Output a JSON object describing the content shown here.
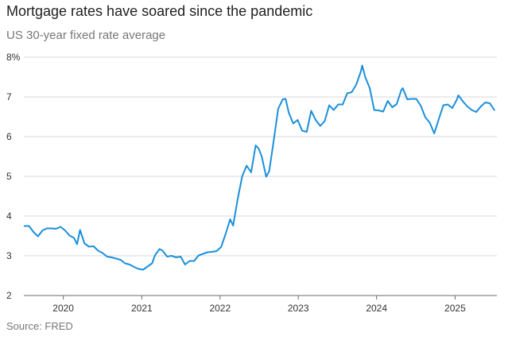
{
  "title": "Mortgage rates have soared since the pandemic",
  "subtitle": "US 30-year fixed rate average",
  "source": "Source: FRED",
  "colors": {
    "line": "#1b8fdb",
    "grid": "#d9d9d9",
    "axis": "#6b6b6b"
  },
  "chart_data": {
    "type": "line",
    "title": "Mortgage rates have soared since the pandemic",
    "subtitle": "US 30-year fixed rate average",
    "xlabel": "",
    "ylabel": "",
    "ylim": [
      2,
      8
    ],
    "xlim": [
      "2019-07-01",
      "2025-07-15"
    ],
    "yticks": [
      2,
      3,
      4,
      5,
      6,
      7,
      8
    ],
    "ytick_labels": [
      "2",
      "3",
      "4",
      "5",
      "6",
      "7",
      "8%"
    ],
    "xticks": [
      "2020-01-01",
      "2021-01-01",
      "2022-01-01",
      "2023-01-01",
      "2024-01-01",
      "2025-01-01"
    ],
    "xtick_labels": [
      "2020",
      "2021",
      "2022",
      "2023",
      "2024",
      "2025"
    ],
    "grid": true,
    "legend": "none",
    "series": [
      {
        "x": [
          "2019-07-04",
          "2019-07-25",
          "2019-08-15",
          "2019-09-05",
          "2019-09-26",
          "2019-10-17",
          "2019-11-07",
          "2019-11-28",
          "2019-12-19",
          "2020-01-09",
          "2020-01-30",
          "2020-02-20",
          "2020-03-05",
          "2020-03-19",
          "2020-04-09",
          "2020-04-30",
          "2020-05-21",
          "2020-06-11",
          "2020-07-02",
          "2020-07-23",
          "2020-08-13",
          "2020-09-03",
          "2020-09-24",
          "2020-10-15",
          "2020-11-05",
          "2020-11-26",
          "2020-12-17",
          "2021-01-07",
          "2021-01-28",
          "2021-02-18",
          "2021-03-04",
          "2021-03-25",
          "2021-04-08",
          "2021-04-29",
          "2021-05-20",
          "2021-06-10",
          "2021-07-01",
          "2021-07-22",
          "2021-08-12",
          "2021-09-02",
          "2021-09-23",
          "2021-10-14",
          "2021-11-04",
          "2021-11-25",
          "2021-12-16",
          "2022-01-06",
          "2022-01-27",
          "2022-02-17",
          "2022-03-03",
          "2022-03-24",
          "2022-04-14",
          "2022-05-05",
          "2022-05-26",
          "2022-06-16",
          "2022-06-30",
          "2022-07-14",
          "2022-08-04",
          "2022-08-18",
          "2022-09-08",
          "2022-09-29",
          "2022-10-20",
          "2022-11-03",
          "2022-11-17",
          "2022-12-08",
          "2022-12-29",
          "2023-01-19",
          "2023-02-09",
          "2023-03-02",
          "2023-03-23",
          "2023-04-13",
          "2023-05-04",
          "2023-05-25",
          "2023-06-15",
          "2023-07-06",
          "2023-07-27",
          "2023-08-17",
          "2023-09-07",
          "2023-09-28",
          "2023-10-19",
          "2023-10-26",
          "2023-11-09",
          "2023-11-30",
          "2023-12-21",
          "2024-01-11",
          "2024-02-01",
          "2024-02-22",
          "2024-03-14",
          "2024-04-04",
          "2024-04-25",
          "2024-05-02",
          "2024-05-23",
          "2024-06-13",
          "2024-07-04",
          "2024-07-25",
          "2024-08-15",
          "2024-09-05",
          "2024-09-26",
          "2024-10-17",
          "2024-11-07",
          "2024-11-28",
          "2024-12-19",
          "2025-01-09",
          "2025-01-16",
          "2025-02-06",
          "2025-02-27",
          "2025-03-20",
          "2025-04-10",
          "2025-05-01",
          "2025-05-22",
          "2025-06-12",
          "2025-07-03"
        ],
        "values": [
          3.75,
          3.75,
          3.6,
          3.49,
          3.64,
          3.69,
          3.69,
          3.68,
          3.73,
          3.64,
          3.51,
          3.45,
          3.29,
          3.65,
          3.31,
          3.23,
          3.24,
          3.13,
          3.07,
          2.98,
          2.96,
          2.93,
          2.9,
          2.81,
          2.78,
          2.72,
          2.67,
          2.65,
          2.73,
          2.81,
          3.02,
          3.17,
          3.13,
          2.98,
          3.0,
          2.96,
          2.98,
          2.78,
          2.87,
          2.87,
          3.01,
          3.05,
          3.09,
          3.1,
          3.12,
          3.22,
          3.55,
          3.92,
          3.76,
          4.42,
          5.0,
          5.27,
          5.1,
          5.78,
          5.7,
          5.51,
          4.99,
          5.13,
          5.89,
          6.7,
          6.94,
          6.95,
          6.61,
          6.33,
          6.42,
          6.15,
          6.12,
          6.65,
          6.42,
          6.27,
          6.39,
          6.79,
          6.67,
          6.81,
          6.81,
          7.09,
          7.12,
          7.31,
          7.63,
          7.79,
          7.5,
          7.22,
          6.67,
          6.66,
          6.63,
          6.9,
          6.74,
          6.82,
          7.17,
          7.22,
          6.94,
          6.95,
          6.95,
          6.78,
          6.49,
          6.35,
          6.08,
          6.44,
          6.79,
          6.81,
          6.72,
          6.93,
          7.04,
          6.89,
          6.76,
          6.67,
          6.62,
          6.76,
          6.86,
          6.84,
          6.67
        ]
      }
    ]
  }
}
